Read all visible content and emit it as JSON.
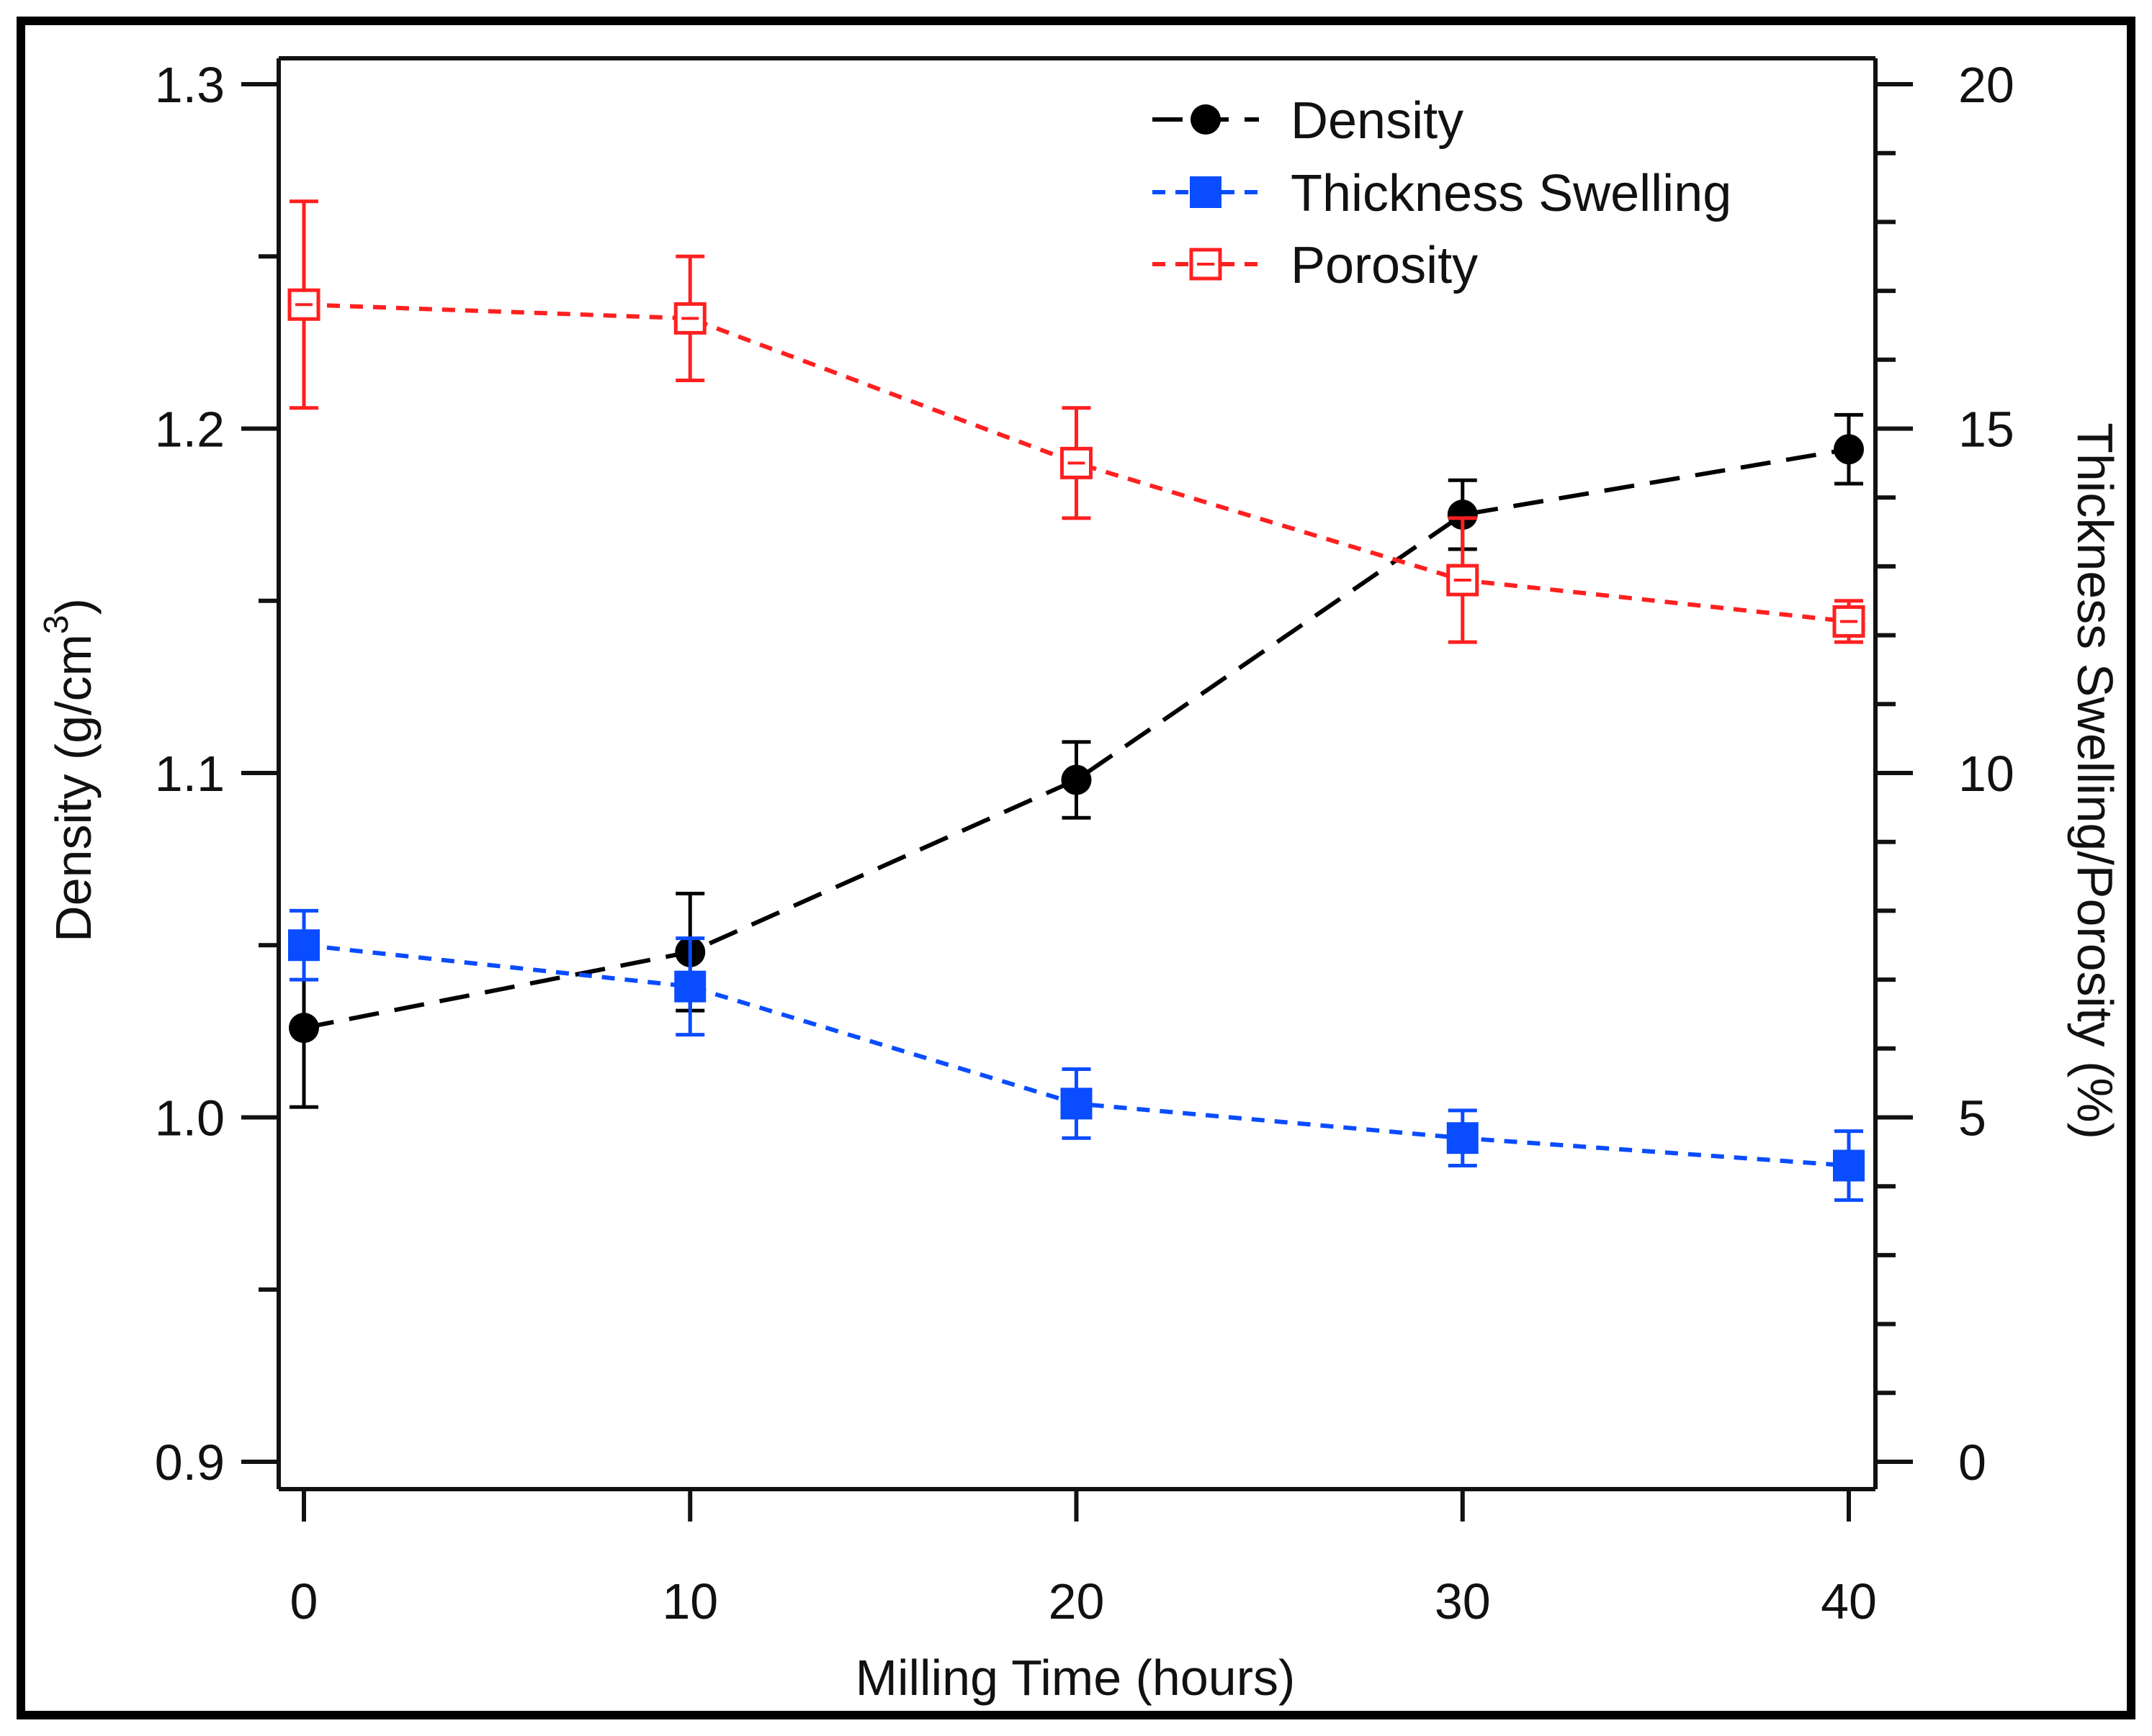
{
  "chart_data": {
    "type": "line",
    "xlabel": "Milling Time (hours)",
    "ylabel": "Density (g/cm",
    "ylabel_superscript": "3",
    "ylabel_close": ")",
    "y2label": "Thickness Swelling/Porosity (%)",
    "xlim": [
      -1,
      41
    ],
    "ylim": [
      0.9,
      1.3
    ],
    "y2lim": [
      0,
      20
    ],
    "xticks": [
      0,
      10,
      20,
      30,
      40
    ],
    "xtick_labels": [
      "0",
      "10",
      "20",
      "30",
      "40"
    ],
    "yticks": [
      0.9,
      1.0,
      1.1,
      1.2,
      1.3
    ],
    "ytick_labels": [
      "0.9",
      "1.0",
      "1.1",
      "1.2",
      "1.3"
    ],
    "y2ticks": [
      0,
      5,
      10,
      15,
      20
    ],
    "y2tick_labels": [
      "0",
      "5",
      "10",
      "15",
      "20"
    ],
    "grid": false,
    "legend_position": "top-right",
    "x": [
      0,
      10,
      20,
      30,
      40
    ],
    "series": [
      {
        "name": "Density",
        "axis": "left",
        "color": "#000000",
        "marker": "filled-circle",
        "line": "long-dash",
        "values": [
          1.026,
          1.048,
          1.098,
          1.175,
          1.194
        ],
        "errors": [
          0.023,
          0.017,
          0.011,
          0.01,
          0.01
        ]
      },
      {
        "name": "Thickness Swelling",
        "axis": "right",
        "color": "#0a4cff",
        "marker": "filled-square",
        "line": "short-dash",
        "values": [
          7.5,
          6.9,
          5.2,
          4.7,
          4.3
        ],
        "errors": [
          0.5,
          0.7,
          0.5,
          0.4,
          0.5
        ]
      },
      {
        "name": "Porosity",
        "axis": "right",
        "color": "#ff2020",
        "marker": "open-square",
        "line": "short-dash",
        "values": [
          16.8,
          16.6,
          14.5,
          12.8,
          12.2
        ],
        "errors": [
          1.5,
          0.9,
          0.8,
          0.9,
          0.3
        ]
      }
    ]
  }
}
